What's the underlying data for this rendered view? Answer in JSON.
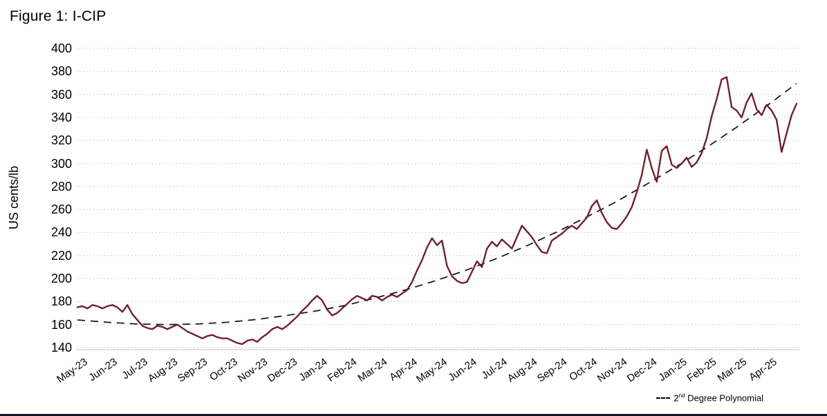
{
  "page": {
    "title": "Figure 1: I-CIP"
  },
  "colors": {
    "price_line": "#6e1f2f",
    "trend_line": "#1a1a1a",
    "grid": "#c9c9c9",
    "axis": "#d0d0d0",
    "bottom_rule": "#0d1522"
  },
  "legend": {
    "label_base": "2",
    "label_sup": "nd",
    "label_rest": " Degree Polynomial"
  },
  "chart_data": {
    "type": "line",
    "title": "Figure 1: I-CIP",
    "ylabel": "US cents/lb",
    "ylim": [
      140,
      400
    ],
    "ytick_step": 20,
    "grid": "dotted-horizontal",
    "legend_position": "bottom-right",
    "x_categories": [
      "May-23",
      "Jun-23",
      "Jul-23",
      "Aug-23",
      "Sep-23",
      "Oct-23",
      "Nov-23",
      "Dec-23",
      "Jan-24",
      "Feb-24",
      "Mar-24",
      "Apr-24",
      "May-24",
      "Jun-24",
      "Jul-24",
      "Aug-24",
      "Sep-24",
      "Oct-24",
      "Nov-24",
      "Dec-24",
      "Jan-25",
      "Feb-25",
      "Mar-25",
      "Apr-25"
    ],
    "series": [
      {
        "name": "I-CIP",
        "color": "#6e1f2f",
        "points_per_month": 6,
        "values": [
          175,
          176,
          174,
          177,
          176,
          174,
          176,
          177,
          175,
          171,
          177,
          169,
          164,
          159,
          157,
          156,
          159,
          158,
          156,
          158,
          160,
          157,
          154,
          152,
          150,
          148,
          150,
          151,
          149,
          148,
          148,
          146,
          144,
          143,
          146,
          147,
          145,
          149,
          152,
          156,
          158,
          156,
          159,
          163,
          167,
          172,
          176,
          181,
          185,
          181,
          173,
          168,
          170,
          174,
          178,
          182,
          185,
          183,
          181,
          185,
          184,
          181,
          184,
          186,
          184,
          187,
          190,
          197,
          207,
          216,
          227,
          235,
          229,
          233,
          211,
          202,
          198,
          196,
          197,
          206,
          215,
          210,
          226,
          232,
          228,
          234,
          230,
          226,
          236,
          246,
          241,
          236,
          229,
          223,
          222,
          233,
          236,
          239,
          243,
          246,
          243,
          248,
          253,
          263,
          268,
          257,
          249,
          244,
          243,
          248,
          254,
          262,
          275,
          290,
          312,
          296,
          284,
          311,
          315,
          299,
          296,
          300,
          305,
          297,
          301,
          309,
          322,
          341,
          356,
          373,
          375,
          349,
          346,
          340,
          353,
          361,
          347,
          342,
          351,
          346,
          338,
          310,
          326,
          342,
          352
        ]
      },
      {
        "name": "2nd Degree Polynomial",
        "style": "dashed",
        "color": "#1a1a1a",
        "monthly_values": [
          164,
          162,
          160.5,
          160,
          160.5,
          162,
          164.5,
          168,
          172,
          177,
          183.5,
          190.5,
          198.5,
          207.5,
          217.5,
          228.5,
          240.5,
          253.5,
          267,
          282,
          297.5,
          314,
          331.5,
          350,
          369.5
        ]
      }
    ]
  }
}
